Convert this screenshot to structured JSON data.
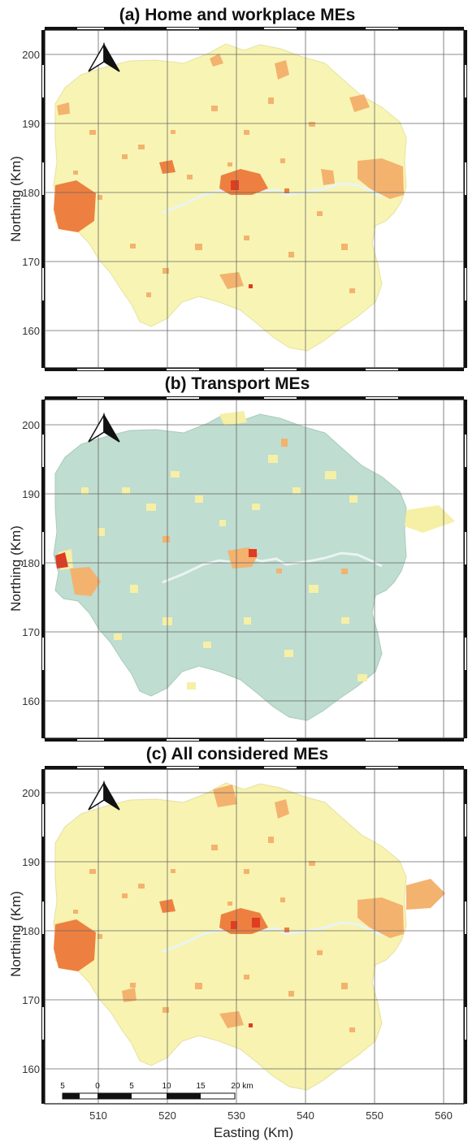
{
  "figure": {
    "panels": [
      {
        "id": "a",
        "title": "(a) Home and workplace MEs",
        "ylabel": "Northing (Km)",
        "yticks": [
          "200",
          "190",
          "180",
          "170",
          "160"
        ],
        "base_color": "#f8f5b4",
        "hotspot_colors": [
          "#f4b26f",
          "#ed8040",
          "#df3c24"
        ]
      },
      {
        "id": "b",
        "title": "(b) Transport MEs",
        "ylabel": "Northing (Km)",
        "yticks": [
          "200",
          "190",
          "180",
          "170",
          "160"
        ],
        "base_color": "#bfddd0",
        "hotspot_colors": [
          "#f6efa6",
          "#f4b26f",
          "#df3c24"
        ]
      },
      {
        "id": "c",
        "title": "(c) All considered MEs",
        "ylabel": "Northing (Km)",
        "yticks": [
          "200",
          "190",
          "180",
          "170",
          "160"
        ],
        "base_color": "#f8f3b0",
        "hotspot_colors": [
          "#f4b26f",
          "#ed8040",
          "#df3c24"
        ]
      }
    ],
    "xlabel": "Easting (Km)",
    "xticks": [
      "510",
      "520",
      "530",
      "540",
      "550",
      "560"
    ],
    "scale_bar": {
      "labels": [
        "5",
        "0",
        "5",
        "10",
        "15",
        "20 km"
      ]
    },
    "north_arrow": "north-arrow-icon",
    "river_color": "#eaf4f4"
  }
}
